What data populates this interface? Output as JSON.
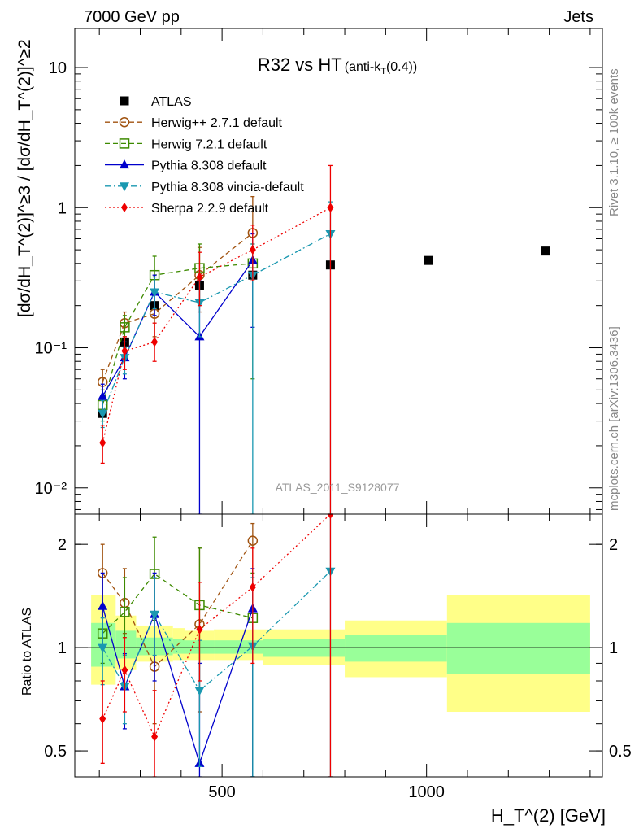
{
  "header": {
    "left": "7000 GeV pp",
    "right": "Jets"
  },
  "title": {
    "main": "R32 vs HT",
    "sub": "(anti-k",
    "sub_T": "T",
    "sub_end": "(0.4))"
  },
  "watermark": "ATLAS_2011_S9128077",
  "side_labels": {
    "rivet": "Rivet 3.1.10, ≥ 100k events",
    "mcplots": "mcplots.cern.ch [arXiv:1306.3436]"
  },
  "axes": {
    "ylabel_top": "[dσ/dH_T^(2)]^≥3 / [dσ/dH_T^(2)]^≥2",
    "ylabel_bottom": "Ratio to ATLAS",
    "xlabel": "H_T^(2) [GeV]"
  },
  "colors": {
    "atlas": "#000000",
    "herwigpp": "#a0520f",
    "herwig7": "#3d8a00",
    "pythia": "#0000cc",
    "vincia": "#1a98b0",
    "sherpa": "#ee0000",
    "band_inner": "#99ff99",
    "band_outer": "#ffff88"
  },
  "chart_data": [
    {
      "type": "scatter",
      "panel": "main",
      "xscale": "linear",
      "yscale": "log",
      "xlim": [
        140,
        1430
      ],
      "ylim": [
        0.0065,
        19
      ],
      "xticks": [
        500,
        1000
      ],
      "yticks": [
        {
          "v": 0.01,
          "label": "10⁻²"
        },
        {
          "v": 0.1,
          "label": "10⁻¹"
        },
        {
          "v": 1,
          "label": "1"
        },
        {
          "v": 10,
          "label": "10"
        }
      ],
      "legend_position": "upper-left",
      "series": [
        {
          "name": "ATLAS",
          "key": "atlas",
          "marker": "square",
          "line": "none",
          "x": [
            208,
            262,
            335,
            445,
            575,
            765,
            1005,
            1290
          ],
          "y": [
            0.034,
            0.11,
            0.2,
            0.28,
            0.33,
            0.39,
            0.42,
            0.49
          ]
        },
        {
          "name": "Herwig++ 2.7.1 default",
          "key": "herwigpp",
          "marker": "circle-open",
          "line": "dashed",
          "x": [
            208,
            262,
            335,
            445,
            575
          ],
          "y": [
            0.057,
            0.15,
            0.175,
            0.33,
            0.66
          ],
          "ylo": [
            0.045,
            0.12,
            0.12,
            0.18,
            0.3
          ],
          "yhi": [
            0.07,
            0.18,
            0.25,
            0.52,
            1.2
          ]
        },
        {
          "name": "Herwig 7.2.1 default",
          "key": "herwig7",
          "marker": "square-open",
          "line": "dashed",
          "x": [
            208,
            262,
            335,
            445,
            575
          ],
          "y": [
            0.039,
            0.14,
            0.33,
            0.37,
            0.4
          ],
          "ylo": [
            0.03,
            0.11,
            0.25,
            0.22,
            0.06
          ],
          "yhi": [
            0.05,
            0.17,
            0.45,
            0.55,
            0.55
          ]
        },
        {
          "name": "Pythia 8.308 default",
          "key": "pythia",
          "marker": "triangle-up",
          "line": "solid",
          "x": [
            208,
            262,
            335,
            445,
            575
          ],
          "y": [
            0.045,
            0.085,
            0.25,
            0.12,
            0.42
          ],
          "ylo": [
            0.035,
            0.06,
            0.17,
            0.0065,
            0.14
          ],
          "yhi": [
            0.055,
            0.11,
            0.33,
            0.3,
            0.65
          ]
        },
        {
          "name": "Pythia 8.308 vincia-default",
          "key": "vincia",
          "marker": "triangle-down",
          "line": "dashdot",
          "x": [
            208,
            262,
            335,
            445,
            575,
            765
          ],
          "y": [
            0.034,
            0.085,
            0.25,
            0.21,
            0.33,
            0.65
          ],
          "ylo": [
            0.027,
            0.065,
            0.19,
            0.12,
            0.0065,
            0.0065
          ],
          "yhi": [
            0.042,
            0.1,
            0.32,
            0.32,
            0.55,
            1.1
          ]
        },
        {
          "name": "Sherpa 2.2.9 default",
          "key": "sherpa",
          "marker": "diamond",
          "line": "dotted",
          "x": [
            208,
            262,
            335,
            445,
            575,
            765
          ],
          "y": [
            0.021,
            0.095,
            0.11,
            0.32,
            0.5,
            1.0
          ],
          "ylo": [
            0.015,
            0.07,
            0.08,
            0.2,
            0.3,
            0.0065
          ],
          "yhi": [
            0.028,
            0.12,
            0.15,
            0.48,
            0.75,
            2.0
          ]
        }
      ]
    },
    {
      "type": "scatter",
      "panel": "ratio",
      "xscale": "linear",
      "yscale": "log",
      "xlim": [
        140,
        1430
      ],
      "ylim": [
        0.42,
        2.45
      ],
      "xticks": [
        500,
        1000
      ],
      "yticks": [
        {
          "v": 0.5,
          "label": "0.5"
        },
        {
          "v": 1,
          "label": "1"
        },
        {
          "v": 2,
          "label": "2"
        }
      ],
      "bands": [
        {
          "x0": 180,
          "x1": 240,
          "inner": [
            0.88,
            1.18
          ],
          "outer": [
            0.78,
            1.42
          ]
        },
        {
          "x0": 240,
          "x1": 290,
          "inner": [
            0.93,
            1.12
          ],
          "outer": [
            0.86,
            1.24
          ]
        },
        {
          "x0": 290,
          "x1": 380,
          "inner": [
            0.95,
            1.07
          ],
          "outer": [
            0.91,
            1.16
          ]
        },
        {
          "x0": 380,
          "x1": 410,
          "inner": [
            0.96,
            1.06
          ],
          "outer": [
            0.92,
            1.14
          ]
        },
        {
          "x0": 410,
          "x1": 480,
          "inner": [
            0.96,
            1.05
          ],
          "outer": [
            0.92,
            1.12
          ]
        },
        {
          "x0": 480,
          "x1": 600,
          "inner": [
            0.96,
            1.05
          ],
          "outer": [
            0.92,
            1.13
          ]
        },
        {
          "x0": 600,
          "x1": 800,
          "inner": [
            0.94,
            1.06
          ],
          "outer": [
            0.89,
            1.13
          ]
        },
        {
          "x0": 800,
          "x1": 1050,
          "inner": [
            0.91,
            1.09
          ],
          "outer": [
            0.82,
            1.2
          ]
        },
        {
          "x0": 1050,
          "x1": 1400,
          "inner": [
            0.84,
            1.18
          ],
          "outer": [
            0.65,
            1.42
          ]
        }
      ],
      "series": [
        {
          "key": "herwigpp",
          "marker": "circle-open",
          "line": "dashed",
          "x": [
            208,
            262,
            335,
            445,
            575
          ],
          "y": [
            1.65,
            1.35,
            0.88,
            1.17,
            2.05
          ],
          "ylo": [
            1.3,
            1.1,
            0.6,
            0.65,
            0.4
          ],
          "yhi": [
            2.0,
            1.7,
            1.2,
            1.95,
            2.3
          ]
        },
        {
          "key": "herwig7",
          "marker": "square-open",
          "line": "dashed",
          "x": [
            208,
            262,
            335,
            445,
            575
          ],
          "y": [
            1.1,
            1.27,
            1.64,
            1.33,
            1.22
          ],
          "ylo": [
            0.9,
            1.0,
            1.2,
            0.75,
            0.42
          ],
          "yhi": [
            1.3,
            1.6,
            2.1,
            1.95,
            1.65
          ]
        },
        {
          "key": "pythia",
          "marker": "triangle-up",
          "line": "solid",
          "x": [
            208,
            262,
            335,
            445,
            575
          ],
          "y": [
            1.32,
            0.77,
            1.25,
            0.46,
            1.3
          ],
          "ylo": [
            1.0,
            0.58,
            0.8,
            0.42,
            0.42
          ],
          "yhi": [
            1.65,
            0.96,
            1.65,
            0.9,
            1.7
          ]
        },
        {
          "key": "vincia",
          "marker": "triangle-down",
          "line": "dashdot",
          "x": [
            208,
            262,
            335,
            445,
            575,
            765
          ],
          "y": [
            1.0,
            0.77,
            1.25,
            0.75,
            1.01,
            1.67
          ],
          "ylo": [
            0.78,
            0.6,
            0.95,
            0.45,
            0.42,
            0.42
          ],
          "yhi": [
            1.22,
            0.95,
            1.6,
            1.05,
            1.6,
            2.45
          ]
        },
        {
          "key": "sherpa",
          "marker": "diamond",
          "line": "dotted",
          "x": [
            208,
            262,
            335,
            445,
            575,
            765
          ],
          "y": [
            0.62,
            0.86,
            0.55,
            1.13,
            1.5,
            2.45
          ],
          "ylo": [
            0.46,
            0.65,
            0.42,
            0.8,
            0.9,
            0.42
          ],
          "yhi": [
            0.8,
            1.07,
            0.75,
            1.55,
            1.95,
            2.45
          ]
        }
      ]
    }
  ]
}
